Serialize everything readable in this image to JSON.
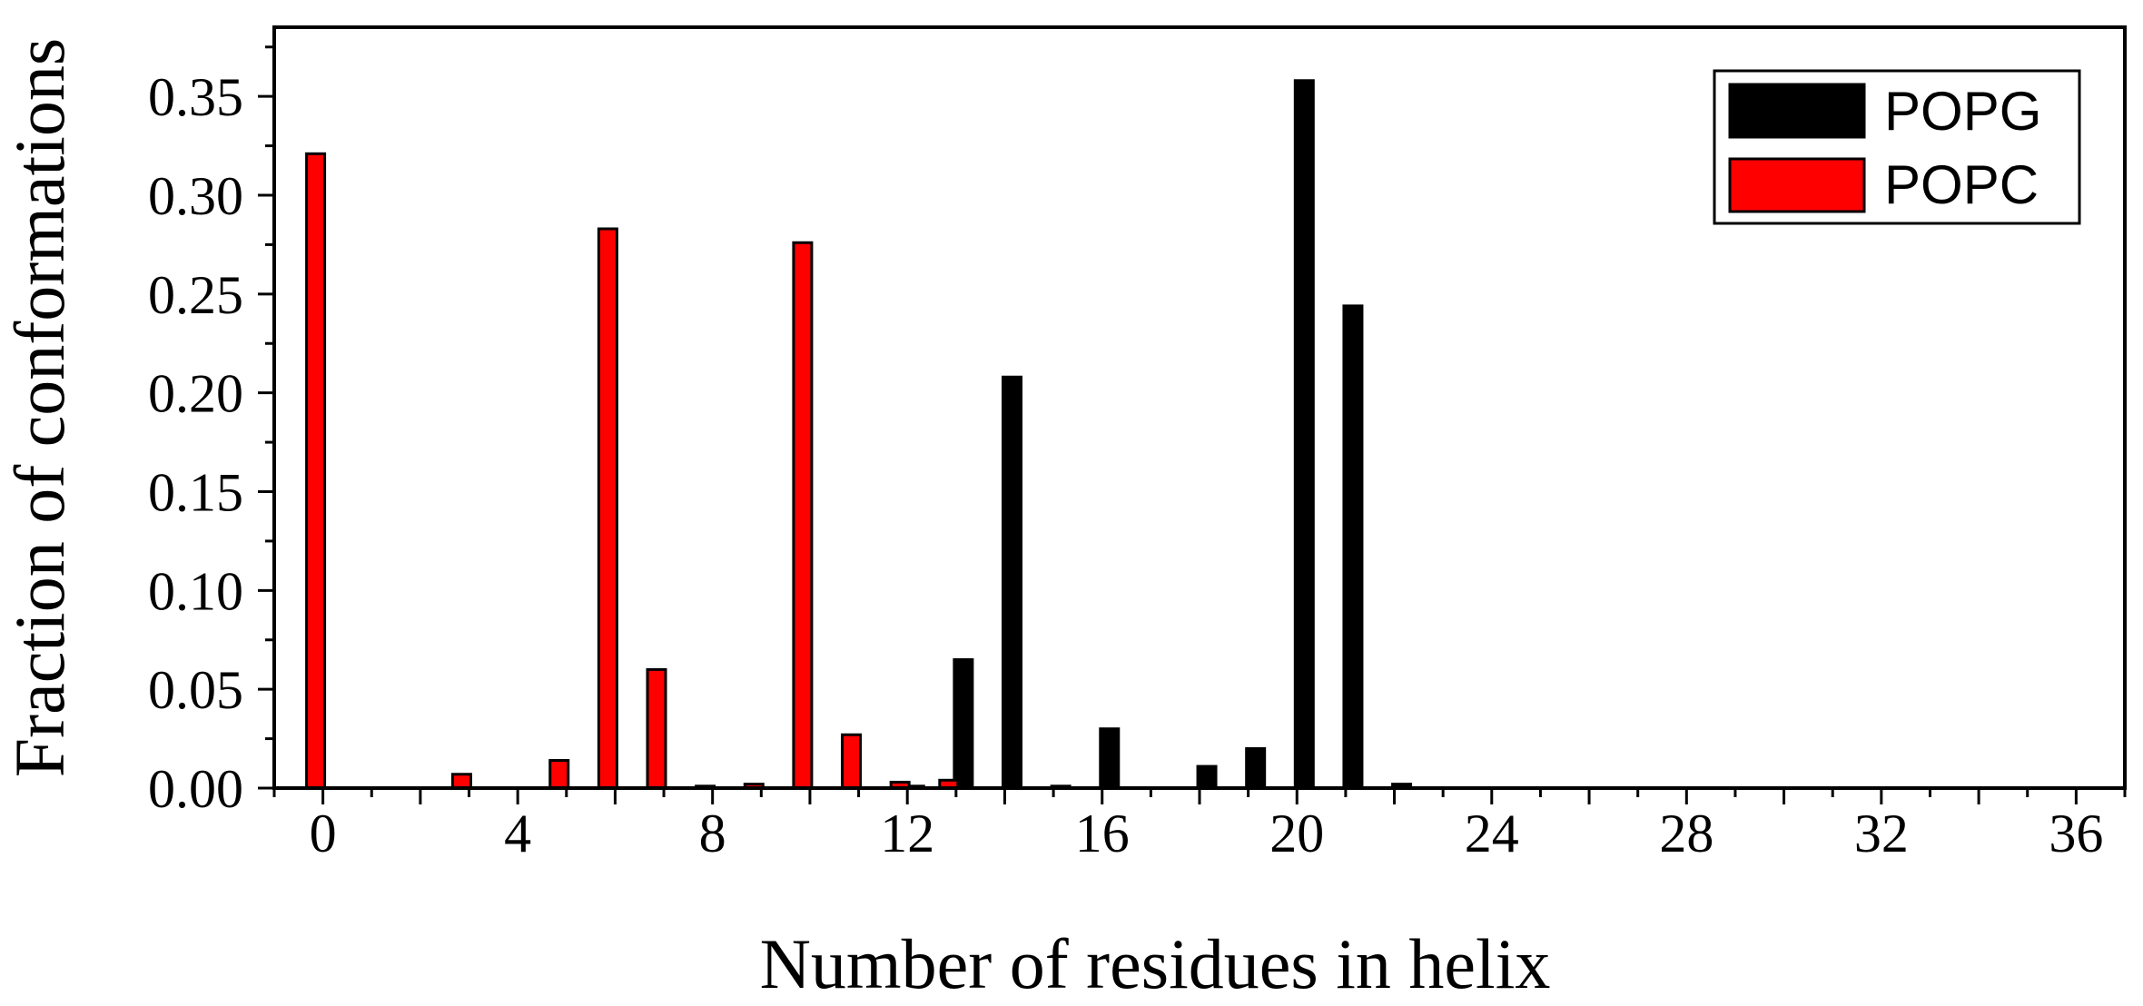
{
  "chart_data": {
    "type": "bar",
    "xlabel": "Number of residues in helix",
    "ylabel": "Fraction of conformations",
    "xlim": [
      -1,
      37
    ],
    "ylim": [
      0,
      0.385
    ],
    "xticks": [
      0,
      4,
      8,
      12,
      16,
      20,
      24,
      28,
      32,
      36
    ],
    "xtick_labels": [
      "0",
      "4",
      "8",
      "12",
      "16",
      "20",
      "24",
      "28",
      "32",
      "36"
    ],
    "yticks": [
      0,
      0.05,
      0.1,
      0.15,
      0.2,
      0.25,
      0.3,
      0.35
    ],
    "ytick_labels": [
      "0.00",
      "0.05",
      "0.10",
      "0.15",
      "0.20",
      "0.25",
      "0.30",
      "0.35"
    ],
    "legend_position": "top-right",
    "grid": false,
    "series": [
      {
        "name": "POPG",
        "color": "#000000",
        "x": [
          12,
          13,
          14,
          15,
          16,
          18,
          19,
          20,
          21,
          22
        ],
        "values": [
          0.001,
          0.065,
          0.208,
          0.001,
          0.03,
          0.011,
          0.02,
          0.358,
          0.244,
          0.002
        ]
      },
      {
        "name": "POPC",
        "color": "#ff0000",
        "x": [
          0,
          3,
          5,
          6,
          7,
          8,
          9,
          10,
          11,
          12,
          13
        ],
        "values": [
          0.321,
          0.007,
          0.014,
          0.283,
          0.06,
          0.001,
          0.002,
          0.276,
          0.027,
          0.003,
          0.004
        ]
      }
    ]
  }
}
